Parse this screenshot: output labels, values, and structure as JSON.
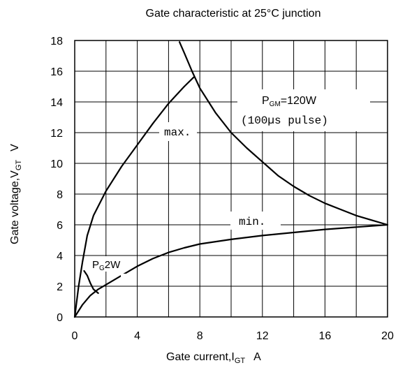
{
  "chart_data": {
    "type": "line",
    "title": "Gate characteristic at 25°C junction",
    "xlabel": {
      "main": "Gate current,I",
      "sub": "GT",
      "unit": "A"
    },
    "ylabel": {
      "main": "Gate voltage,V",
      "sub": "GT",
      "unit": "V"
    },
    "xlim": [
      0,
      20
    ],
    "ylim": [
      0,
      18
    ],
    "xticks": [
      0,
      2,
      4,
      6,
      8,
      10,
      12,
      14,
      16,
      18,
      20
    ],
    "yticks": [
      0,
      2,
      4,
      6,
      8,
      10,
      12,
      14,
      16,
      18
    ],
    "xtick_labels": [
      "0",
      "4",
      "8",
      "12",
      "16",
      "20"
    ],
    "ytick_labels": [
      "0",
      "2",
      "4",
      "6",
      "8",
      "10",
      "12",
      "14",
      "16",
      "18"
    ],
    "grid": true,
    "series": [
      {
        "key": "max",
        "values": [
          [
            0,
            0
          ],
          [
            0.25,
            2.0
          ],
          [
            0.5,
            3.6
          ],
          [
            0.8,
            5.3
          ],
          [
            1.2,
            6.6
          ],
          [
            2,
            8.2
          ],
          [
            3,
            9.8
          ],
          [
            4,
            11.2
          ],
          [
            5,
            12.6
          ],
          [
            6,
            13.9
          ],
          [
            7,
            15.0
          ],
          [
            7.6,
            15.6
          ]
        ]
      },
      {
        "key": "min",
        "values": [
          [
            0,
            0
          ],
          [
            0.5,
            0.8
          ],
          [
            1,
            1.4
          ],
          [
            1.5,
            1.8
          ],
          [
            2,
            2.1
          ],
          [
            3,
            2.7
          ],
          [
            4,
            3.3
          ],
          [
            5,
            3.8
          ],
          [
            6,
            4.2
          ],
          [
            7,
            4.5
          ],
          [
            8,
            4.75
          ],
          [
            10,
            5.05
          ],
          [
            12,
            5.3
          ],
          [
            14,
            5.5
          ],
          [
            16,
            5.7
          ],
          [
            18,
            5.85
          ],
          [
            20,
            6.0
          ]
        ]
      },
      {
        "key": "pgm",
        "values": [
          [
            6.7,
            17.9
          ],
          [
            7.0,
            17.2
          ],
          [
            7.5,
            16.0
          ],
          [
            8,
            14.9
          ],
          [
            9,
            13.3
          ],
          [
            10,
            12.0
          ],
          [
            11,
            11.0
          ],
          [
            12,
            10.1
          ],
          [
            13,
            9.2
          ],
          [
            14,
            8.5
          ],
          [
            15,
            7.9
          ],
          [
            16,
            7.4
          ],
          [
            17,
            7.0
          ],
          [
            18,
            6.6
          ],
          [
            19,
            6.3
          ],
          [
            20,
            6.0
          ]
        ]
      },
      {
        "key": "pg",
        "values": [
          [
            0.6,
            3.0
          ],
          [
            0.8,
            2.7
          ],
          [
            1.0,
            2.2
          ],
          [
            1.2,
            1.8
          ],
          [
            1.5,
            1.55
          ]
        ]
      }
    ],
    "annotations": [
      {
        "key": "max",
        "text": "max."
      },
      {
        "key": "min",
        "text": "min."
      },
      {
        "key": "pgm",
        "line1_main": "P",
        "line1_sub": "GM",
        "line1_rest": "=120W",
        "line2": "(100µs pulse)"
      },
      {
        "key": "pg",
        "main": "P",
        "sub": "G",
        "rest": "2W"
      }
    ]
  }
}
